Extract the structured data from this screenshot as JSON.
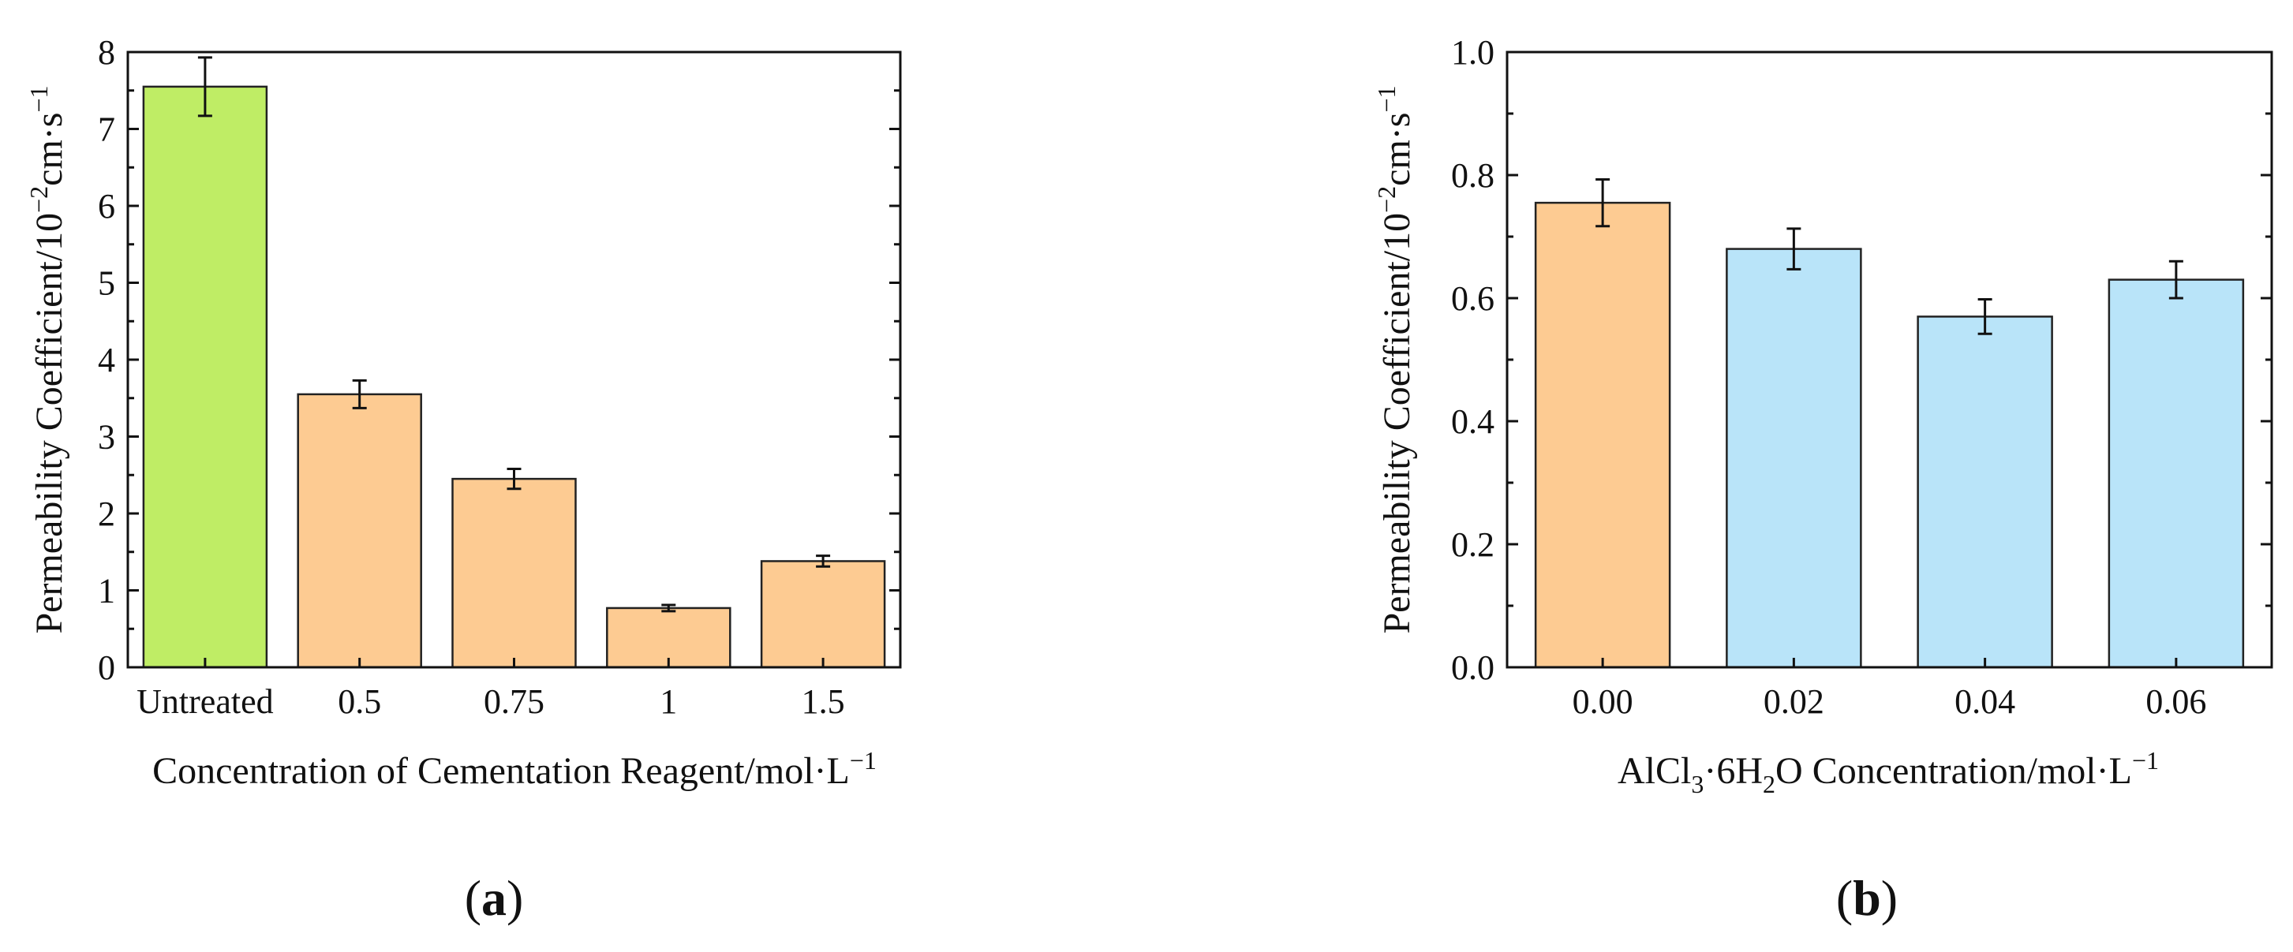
{
  "chart_data": [
    {
      "type": "bar",
      "panel_label": "a",
      "categories": [
        "Untreated",
        "0.5",
        "0.75",
        "1",
        "1.5"
      ],
      "values": [
        7.55,
        3.55,
        2.45,
        0.77,
        1.38
      ],
      "errors": [
        0.38,
        0.18,
        0.13,
        0.04,
        0.07
      ],
      "bar_colors": [
        "#bfed65",
        "#fdcb92",
        "#fdcb92",
        "#fdcb92",
        "#fdcb92"
      ],
      "ylim": [
        0,
        8
      ],
      "yticks": [
        "0",
        "1",
        "2",
        "3",
        "4",
        "5",
        "6",
        "7",
        "8"
      ],
      "ylabel": {
        "text": "Permeability Coefficient/10",
        "sup1": "−2",
        "mid": "cm·s",
        "sup2": "−1"
      },
      "xlabel": {
        "text": "Concentration of Cementation Reagent/mol·L",
        "sup": "−1"
      }
    },
    {
      "type": "bar",
      "panel_label": "b",
      "categories": [
        "0.00",
        "0.02",
        "0.04",
        "0.06"
      ],
      "values": [
        0.755,
        0.68,
        0.57,
        0.63
      ],
      "errors": [
        0.038,
        0.033,
        0.028,
        0.03
      ],
      "bar_colors": [
        "#fdcb92",
        "#b9e4f9",
        "#b9e4f9",
        "#b9e4f9"
      ],
      "ylim": [
        0,
        1.0
      ],
      "yticks": [
        "0.0",
        "0.2",
        "0.4",
        "0.6",
        "0.8",
        "1.0"
      ],
      "ylabel": {
        "text": "Permeability Coefficient/10",
        "sup1": "−2",
        "mid": "cm·s",
        "sup2": "−1"
      },
      "xlabel": {
        "p1": "AlCl",
        "s1": "3",
        "p2": "·6H",
        "s2": "2",
        "p3": "O Concentration/mol·L",
        "sup": "−1"
      }
    }
  ]
}
